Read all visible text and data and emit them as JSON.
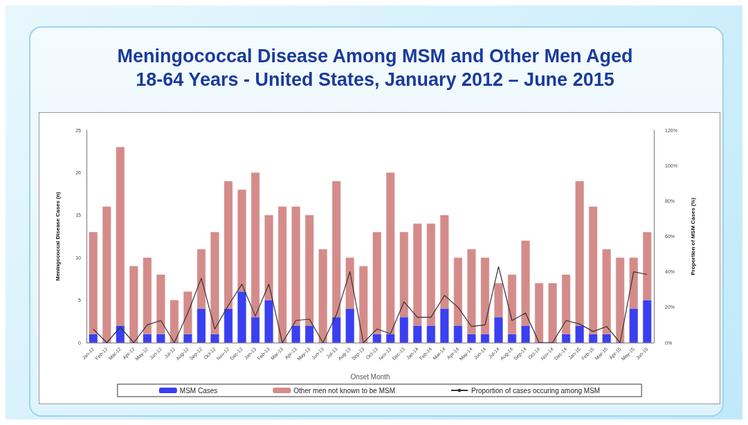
{
  "chart_data": {
    "type": "bar",
    "title": "Meningococcal  Disease Among MSM and Other Men Aged\n18-64 Years - United States, January 2012 – June 2015",
    "xlabel": "Onset Month",
    "ylabel": "Meningococcal Disease Cases (n)",
    "y2label": "Proportion of MSM Cases (%)",
    "categories": [
      "Jan-12",
      "Feb-12",
      "Mar-12",
      "Apr-12",
      "May-12",
      "Jun-12",
      "Jul-12",
      "Aug-12",
      "Sep-12",
      "Oct-12",
      "Nov-12",
      "Dec-12",
      "Jan-13",
      "Feb-13",
      "Mar-13",
      "Apr-13",
      "May-13",
      "Jun-13",
      "Jul-13",
      "Aug-13",
      "Sep-13",
      "Oct-13",
      "Nov-13",
      "Dec-13",
      "Jan-14",
      "Feb-14",
      "Mar-14",
      "Apr-14",
      "May-14",
      "Jun-14",
      "Jul-14",
      "Aug-14",
      "Sep-14",
      "Oct-14",
      "Nov-14",
      "Dec-14",
      "Jan-15",
      "Feb-15",
      "Mar-15",
      "Apr-15",
      "May-15",
      "Jun-15"
    ],
    "stacked": true,
    "series": [
      {
        "name": "MSM Cases",
        "color": "#3a3ff0",
        "values": [
          1,
          0,
          2,
          0,
          1,
          1,
          0,
          1,
          4,
          1,
          4,
          6,
          3,
          5,
          0,
          2,
          2,
          0,
          3,
          4,
          0,
          1,
          1,
          3,
          2,
          2,
          4,
          2,
          1,
          1,
          3,
          1,
          2,
          0,
          0,
          1,
          2,
          1,
          1,
          0,
          4,
          5
        ]
      },
      {
        "name": "Other men not known to be MSM",
        "color": "#d48c8a",
        "values": [
          12,
          16,
          21,
          9,
          9,
          7,
          5,
          5,
          7,
          12,
          15,
          12,
          17,
          10,
          16,
          14,
          13,
          11,
          16,
          6,
          9,
          12,
          19,
          10,
          12,
          12,
          11,
          8,
          10,
          9,
          4,
          7,
          10,
          7,
          7,
          7,
          17,
          15,
          10,
          10,
          6,
          8
        ]
      },
      {
        "name": "Proportion of cases occuring among MSM",
        "type": "line",
        "axis": "y2",
        "color": "#333333",
        "values": [
          7.7,
          0,
          8.7,
          0,
          10,
          12.5,
          0,
          16.7,
          36.4,
          7.7,
          21,
          33,
          15,
          33,
          0,
          12.5,
          13.3,
          0,
          15.8,
          40,
          0,
          7.7,
          5,
          23,
          14.3,
          14.3,
          26.7,
          20,
          9.1,
          10,
          42.9,
          12.5,
          16.7,
          0,
          0,
          12.5,
          10.5,
          6.3,
          9.1,
          0,
          40,
          38.5
        ]
      }
    ],
    "ylim": [
      0,
      25
    ],
    "yticks": [
      0,
      5,
      10,
      15,
      20,
      25
    ],
    "y2lim": [
      0,
      120
    ],
    "y2ticks": [
      {
        "value": 0,
        "label": "0%"
      },
      {
        "value": 20,
        "label": "20%"
      },
      {
        "value": 40,
        "label": "40%"
      },
      {
        "value": 60,
        "label": "60%"
      },
      {
        "value": 80,
        "label": "80%"
      },
      {
        "value": 100,
        "label": "100%"
      },
      {
        "value": 120,
        "label": "120%"
      }
    ],
    "grid": false,
    "legend": "bottom",
    "marker": "none",
    "line_style": "solid"
  }
}
